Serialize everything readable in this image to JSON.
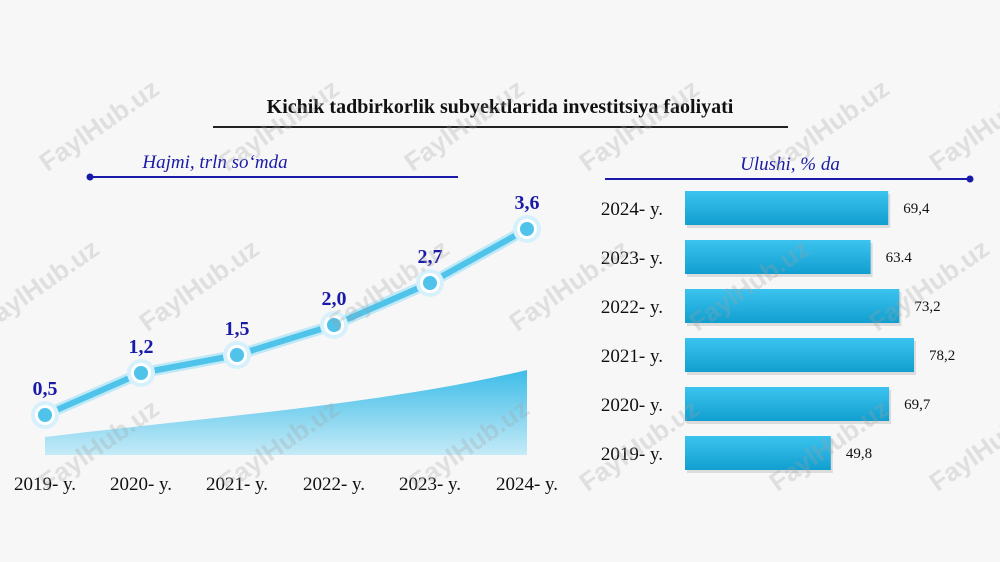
{
  "title": "Kichik tadbirkorlik subyektlarida investitsiya faoliyati",
  "colors": {
    "line": "#4fc3ea",
    "area": "#29b6e6",
    "bar": "#20b3e3",
    "label_blue": "#1a1aa8",
    "arrow": "#1a1aa8"
  },
  "watermark": "FaylHub.uz",
  "chart_data": [
    {
      "type": "line",
      "title": "Hajmi, trln so‘mda",
      "categories": [
        "2019- y.",
        "2020- y.",
        "2021- y.",
        "2022- y.",
        "2023- y.",
        "2024- y."
      ],
      "values": [
        0.5,
        1.2,
        1.5,
        2.0,
        2.7,
        3.6
      ],
      "value_labels": [
        "0,5",
        "1,2",
        "1,5",
        "2,0",
        "2,7",
        "3,6"
      ],
      "ylim": [
        0,
        4
      ],
      "grid": false
    },
    {
      "type": "bar",
      "orientation": "horizontal",
      "title": "Ulushi, % da",
      "categories": [
        "2024- y.",
        "2023- y.",
        "2022- y.",
        "2021- y.",
        "2020- y.",
        "2019- y."
      ],
      "values": [
        69.4,
        63.4,
        73.2,
        78.2,
        69.7,
        49.8
      ],
      "value_labels": [
        "69,4",
        "63.4",
        "73,2",
        "78,2",
        "69,7",
        "49,8"
      ],
      "grid": false
    }
  ]
}
